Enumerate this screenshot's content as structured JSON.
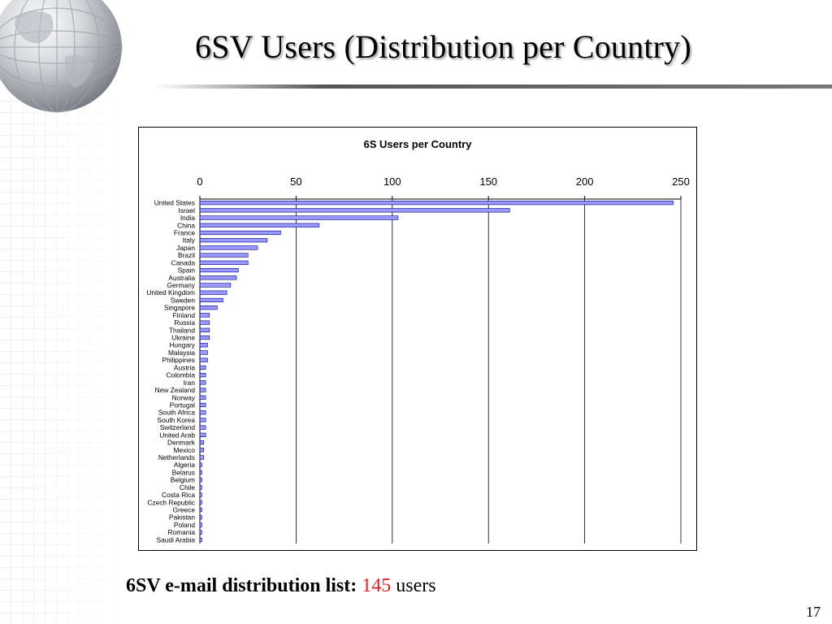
{
  "slide": {
    "title": "6SV Users (Distribution per Country)",
    "footer_label": "6SV e-mail distribution list:",
    "footer_count": "145",
    "footer_unit": "users",
    "page_number": "17"
  },
  "colors": {
    "bar_fill": "#9999ff",
    "bar_stroke": "#000080",
    "footer_count": "#e02020"
  },
  "chart_data": {
    "type": "bar",
    "orientation": "horizontal",
    "title": "6S Users per Country",
    "xlim": [
      0,
      250
    ],
    "x_ticks": [
      0,
      50,
      100,
      150,
      200,
      250
    ],
    "x_axis_position": "top",
    "grid": true,
    "legend": "none",
    "categories": [
      "United States",
      "Israel",
      "India",
      "China",
      "France",
      "Italy",
      "Japan",
      "Brazil",
      "Canada",
      "Spain",
      "Australia",
      "Germany",
      "United Kingdom",
      "Sweden",
      "Singapore",
      "Finland",
      "Russia",
      "Thailand",
      "Ukraine",
      "Hungary",
      "Malaysia",
      "Philippines",
      "Austria",
      "Colombia",
      "Iran",
      "New Zealand",
      "Norway",
      "Portugal",
      "South Africa",
      "South Korea",
      "Switzerland",
      "United Arab",
      "Denmark",
      "Mexico",
      "Netherlands",
      "Algeria",
      "Belarus",
      "Belgium",
      "Chile",
      "Costa Rica",
      "Czech Republic",
      "Greece",
      "Pakistan",
      "Poland",
      "Romania",
      "Saudi Arabia"
    ],
    "values": [
      246,
      161,
      103,
      62,
      42,
      35,
      30,
      25,
      25,
      20,
      19,
      16,
      14,
      12,
      9,
      5,
      5,
      5,
      5,
      4,
      4,
      4,
      3,
      3,
      3,
      3,
      3,
      3,
      3,
      3,
      3,
      3,
      2,
      2,
      2,
      1,
      1,
      1,
      1,
      1,
      1,
      1,
      1,
      1,
      1,
      1
    ]
  }
}
